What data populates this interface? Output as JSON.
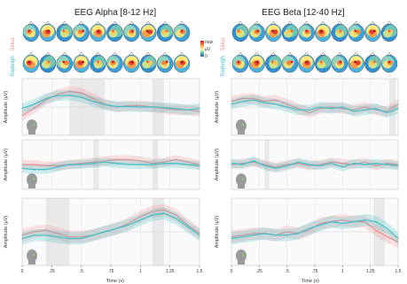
{
  "colors": {
    "sinus": "#f28c8c",
    "rayleigh": "#3fbfc9",
    "shade": "#e9e9e9"
  },
  "figure": {
    "titles": {
      "left": "EEG Alpha [8-12 Hz]",
      "right": "EEG Beta [12-40 Hz]"
    },
    "row_labels": {
      "top": "Sinus",
      "bottom": "Rayleigh"
    },
    "colorbar": {
      "top": "max",
      "mid": "µV",
      "bottom": "0"
    },
    "ylabel": "Amplitude (µV)",
    "xlabel": "Time (s)",
    "left_xticks": [
      "0",
      ".25",
      ".5",
      ".75",
      "1",
      "1.25",
      "1.5"
    ],
    "right_xticks": [
      "0",
      ".25",
      ".5",
      ".75",
      "1",
      "1.25",
      "1.5"
    ]
  },
  "chart_data": [
    {
      "type": "line",
      "panel": "alpha-1",
      "xlim": [
        0,
        1.5
      ],
      "ylim": [
        -1,
        1
      ],
      "x": [
        0,
        0.1,
        0.2,
        0.3,
        0.4,
        0.5,
        0.6,
        0.7,
        0.8,
        0.9,
        1.0,
        1.1,
        1.2,
        1.3,
        1.4,
        1.5
      ],
      "series": [
        {
          "name": "Sinus",
          "values": [
            -0.3,
            -0.05,
            0.25,
            0.45,
            0.55,
            0.5,
            0.3,
            0.1,
            0.0,
            0.05,
            0.05,
            0.0,
            -0.05,
            -0.1,
            -0.1,
            -0.15
          ]
        },
        {
          "name": "Rayleigh",
          "values": [
            -0.05,
            0.1,
            0.3,
            0.4,
            0.42,
            0.35,
            0.2,
            0.08,
            0.02,
            0.02,
            0.0,
            0.0,
            -0.02,
            -0.05,
            -0.1,
            -0.05
          ]
        }
      ],
      "shaded": [
        [
          0.4,
          0.7
        ],
        [
          1.1,
          1.2
        ]
      ]
    },
    {
      "type": "line",
      "panel": "alpha-2",
      "xlim": [
        0,
        1.5
      ],
      "ylim": [
        -1,
        1
      ],
      "x": [
        0,
        0.1,
        0.2,
        0.3,
        0.4,
        0.5,
        0.6,
        0.7,
        0.8,
        0.9,
        1.0,
        1.1,
        1.2,
        1.3,
        1.4,
        1.5
      ],
      "series": [
        {
          "name": "Sinus",
          "values": [
            0.0,
            0.0,
            -0.05,
            -0.05,
            0.0,
            0.05,
            0.1,
            0.15,
            0.2,
            0.2,
            0.15,
            0.05,
            0.1,
            0.2,
            0.1,
            0.0
          ]
        },
        {
          "name": "Rayleigh",
          "values": [
            -0.15,
            -0.2,
            -0.2,
            -0.1,
            0.0,
            0.0,
            0.05,
            0.1,
            0.05,
            0.0,
            0.0,
            0.0,
            0.05,
            0.05,
            0.0,
            -0.05
          ]
        }
      ],
      "shaded": [
        [
          0.6,
          0.65
        ],
        [
          1.1,
          1.15
        ]
      ]
    },
    {
      "type": "line",
      "panel": "alpha-3",
      "xlim": [
        0,
        1.5
      ],
      "ylim": [
        -1,
        1
      ],
      "x": [
        0,
        0.1,
        0.2,
        0.3,
        0.4,
        0.5,
        0.6,
        0.7,
        0.8,
        0.9,
        1.0,
        1.1,
        1.2,
        1.3,
        1.4,
        1.5
      ],
      "series": [
        {
          "name": "Sinus",
          "values": [
            -0.1,
            0.0,
            0.05,
            -0.05,
            -0.15,
            -0.15,
            -0.1,
            0.0,
            0.1,
            0.25,
            0.45,
            0.6,
            0.65,
            0.5,
            0.2,
            -0.05
          ]
        },
        {
          "name": "Rayleigh",
          "values": [
            -0.2,
            -0.1,
            -0.1,
            -0.15,
            -0.2,
            -0.2,
            -0.1,
            0.0,
            0.1,
            0.2,
            0.35,
            0.5,
            0.55,
            0.4,
            0.15,
            -0.1
          ]
        }
      ],
      "shaded": [
        [
          0.2,
          0.4
        ],
        [
          1.1,
          1.2
        ]
      ]
    },
    {
      "type": "line",
      "panel": "beta-1",
      "xlim": [
        0,
        1.5
      ],
      "ylim": [
        -1,
        1
      ],
      "x": [
        0,
        0.1,
        0.2,
        0.3,
        0.4,
        0.5,
        0.6,
        0.7,
        0.8,
        0.9,
        1.0,
        1.1,
        1.2,
        1.3,
        1.4,
        1.5
      ],
      "series": [
        {
          "name": "Sinus",
          "values": [
            0.2,
            0.3,
            0.3,
            0.2,
            0.25,
            0.1,
            -0.05,
            -0.2,
            -0.05,
            0.0,
            -0.05,
            -0.1,
            0.0,
            -0.1,
            -0.15,
            0.1
          ]
        },
        {
          "name": "Rayleigh",
          "values": [
            0.1,
            0.2,
            0.25,
            0.15,
            0.1,
            0.0,
            -0.1,
            -0.1,
            0.0,
            -0.05,
            0.0,
            -0.15,
            -0.1,
            -0.05,
            -0.2,
            -0.05
          ]
        }
      ],
      "shaded": [
        [
          1.42,
          1.48
        ]
      ]
    },
    {
      "type": "line",
      "panel": "beta-2",
      "xlim": [
        0,
        1.5
      ],
      "ylim": [
        -1,
        1
      ],
      "x": [
        0,
        0.1,
        0.2,
        0.3,
        0.4,
        0.5,
        0.6,
        0.7,
        0.8,
        0.9,
        1.0,
        1.1,
        1.2,
        1.3,
        1.4,
        1.5
      ],
      "series": [
        {
          "name": "Sinus",
          "values": [
            0.0,
            0.05,
            0.1,
            0.0,
            -0.1,
            0.0,
            0.05,
            -0.05,
            0.0,
            0.1,
            0.05,
            0.0,
            0.1,
            -0.05,
            0.05,
            0.0
          ]
        },
        {
          "name": "Rayleigh",
          "values": [
            0.05,
            0.0,
            0.15,
            -0.05,
            -0.15,
            -0.05,
            0.1,
            0.0,
            -0.05,
            0.05,
            -0.1,
            0.05,
            0.0,
            0.05,
            0.0,
            -0.05
          ]
        }
      ],
      "shaded": [
        [
          0.3,
          0.34
        ]
      ]
    },
    {
      "type": "line",
      "panel": "beta-3",
      "xlim": [
        0,
        1.5
      ],
      "ylim": [
        -1,
        1
      ],
      "x": [
        0,
        0.1,
        0.2,
        0.3,
        0.4,
        0.5,
        0.6,
        0.7,
        0.8,
        0.9,
        1.0,
        1.1,
        1.2,
        1.3,
        1.4,
        1.5
      ],
      "series": [
        {
          "name": "Sinus",
          "values": [
            -0.15,
            -0.1,
            -0.05,
            -0.05,
            -0.1,
            0.0,
            -0.05,
            0.05,
            0.25,
            0.3,
            0.35,
            0.3,
            0.3,
            0.05,
            -0.15,
            -0.3
          ]
        },
        {
          "name": "Rayleigh",
          "values": [
            -0.2,
            -0.15,
            -0.1,
            -0.05,
            -0.1,
            -0.1,
            -0.05,
            0.1,
            0.2,
            0.3,
            0.25,
            0.3,
            0.35,
            0.3,
            0.1,
            -0.2
          ]
        }
      ],
      "shaded": [
        [
          1.28,
          1.38
        ]
      ]
    }
  ]
}
